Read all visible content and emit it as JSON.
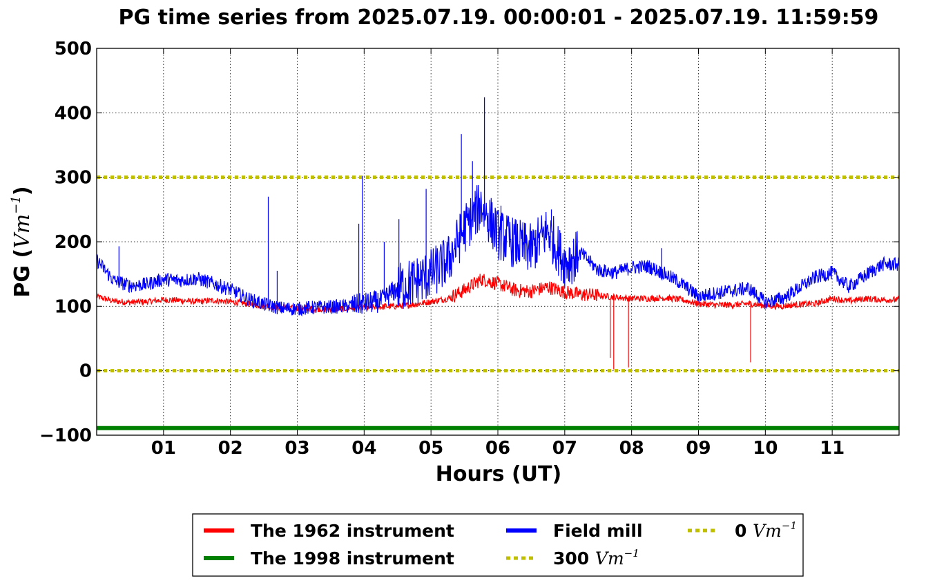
{
  "chart_data": {
    "type": "line",
    "title": "PG time series from 2025.07.19. 00:00:01 - 2025.07.19. 11:59:59",
    "xlabel": "Hours (UT)",
    "ylabel_prefix": "PG (",
    "ylabel_unit": "Vm",
    "ylabel_exp": "−1",
    "ylabel_suffix": ")",
    "xlim": [
      0,
      12
    ],
    "ylim": [
      -100,
      500
    ],
    "x_ticks": [
      1,
      2,
      3,
      4,
      5,
      6,
      7,
      8,
      9,
      10,
      11
    ],
    "x_tick_labels": [
      "01",
      "02",
      "03",
      "04",
      "05",
      "06",
      "07",
      "08",
      "09",
      "10",
      "11"
    ],
    "y_ticks": [
      -100,
      0,
      100,
      200,
      300,
      400,
      500
    ],
    "y_tick_labels": [
      "−100",
      "0",
      "100",
      "200",
      "300",
      "400",
      "500"
    ],
    "grid": true,
    "legend_position": "below",
    "series": [
      {
        "name": "The 1962 instrument",
        "color": "#ff0000",
        "x": [
          0,
          0.25,
          0.5,
          0.75,
          1,
          1.25,
          1.5,
          1.75,
          2,
          2.25,
          2.5,
          2.75,
          3,
          3.25,
          3.5,
          3.75,
          4,
          4.25,
          4.5,
          4.75,
          5,
          5.25,
          5.5,
          5.75,
          6,
          6.25,
          6.5,
          6.75,
          7,
          7.25,
          7.5,
          7.75,
          8,
          8.25,
          8.5,
          8.75,
          9,
          9.25,
          9.5,
          9.75,
          10,
          10.25,
          10.5,
          10.75,
          11,
          11.25,
          11.5,
          11.75,
          12
        ],
        "values": [
          115,
          108,
          106,
          107,
          110,
          109,
          107,
          109,
          107,
          104,
          100,
          98,
          97,
          96,
          95,
          97,
          98,
          99,
          100,
          103,
          107,
          112,
          125,
          142,
          135,
          125,
          123,
          130,
          122,
          118,
          117,
          114,
          112,
          112,
          113,
          110,
          104,
          102,
          102,
          104,
          101,
          100,
          103,
          104,
          112,
          108,
          112,
          110,
          110
        ],
        "drops": [
          [
            7.68,
            20
          ],
          [
            7.73,
            2
          ],
          [
            7.95,
            5
          ],
          [
            9.78,
            13
          ]
        ]
      },
      {
        "name": "Field mill",
        "color": "#0000ff",
        "x": [
          0,
          0.25,
          0.5,
          0.75,
          1,
          1.25,
          1.5,
          1.75,
          2,
          2.25,
          2.5,
          2.75,
          3,
          3.25,
          3.5,
          3.75,
          4,
          4.25,
          4.5,
          4.75,
          5,
          5.25,
          5.5,
          5.75,
          6,
          6.25,
          6.5,
          6.75,
          7,
          7.25,
          7.5,
          7.75,
          8,
          8.25,
          8.5,
          8.75,
          9,
          9.25,
          9.5,
          9.75,
          10,
          10.25,
          10.5,
          10.75,
          11,
          11.25,
          11.5,
          11.75,
          12
        ],
        "values": [
          172,
          140,
          132,
          134,
          142,
          140,
          143,
          135,
          126,
          112,
          103,
          97,
          96,
          98,
          99,
          100,
          104,
          108,
          128,
          138,
          150,
          170,
          220,
          258,
          212,
          198,
          188,
          218,
          168,
          182,
          156,
          152,
          160,
          162,
          150,
          135,
          115,
          120,
          124,
          128,
          106,
          112,
          128,
          145,
          152,
          130,
          148,
          165,
          165
        ],
        "spikes": [
          [
            0.33,
            193
          ],
          [
            2.57,
            270
          ],
          [
            2.7,
            155
          ],
          [
            3.92,
            228
          ],
          [
            3.97,
            302
          ],
          [
            4.3,
            200
          ],
          [
            4.52,
            235
          ],
          [
            4.93,
            282
          ],
          [
            5.45,
            367
          ],
          [
            5.62,
            325
          ],
          [
            5.8,
            424
          ],
          [
            6.05,
            256
          ],
          [
            6.8,
            250
          ],
          [
            8.45,
            190
          ],
          [
            11.85,
            188
          ]
        ]
      },
      {
        "name": "The 1998 instrument",
        "color": "#008000",
        "x": [
          0,
          12
        ],
        "values": [
          -89,
          -89
        ]
      },
      {
        "name": "300 Vm⁻¹",
        "color": "#bfbf00",
        "x": [
          0,
          12
        ],
        "values": [
          300,
          300
        ]
      },
      {
        "name": "0 Vm⁻¹",
        "color": "#bfbf00",
        "x": [
          0,
          12
        ],
        "values": [
          0,
          0
        ]
      }
    ],
    "legend": [
      {
        "label": "The 1962 instrument",
        "prefix": "",
        "unit": "",
        "exp": "",
        "color": "#ff0000",
        "style": "solid"
      },
      {
        "label": "The 1998 instrument",
        "prefix": "",
        "unit": "",
        "exp": "",
        "color": "#008000",
        "style": "solid"
      },
      {
        "label": "Field mill",
        "prefix": "",
        "unit": "",
        "exp": "",
        "color": "#0000ff",
        "style": "solid"
      },
      {
        "label": "",
        "prefix": "300 ",
        "unit": "Vm",
        "exp": "−1",
        "color": "#bfbf00",
        "style": "dotted"
      },
      {
        "label": "",
        "prefix": "0 ",
        "unit": "Vm",
        "exp": "−1",
        "color": "#bfbf00",
        "style": "dotted"
      }
    ]
  }
}
